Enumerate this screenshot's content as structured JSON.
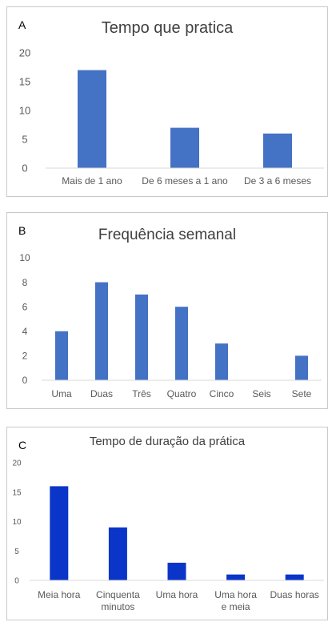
{
  "chart_data": [
    {
      "id": "A",
      "type": "bar",
      "panel_label": "A",
      "title": "Tempo que pratica",
      "categories": [
        "Mais de 1 ano",
        "De 6 meses a 1 ano",
        "De 3 a 6 meses"
      ],
      "values": [
        17,
        7,
        6
      ],
      "ylim": [
        0,
        20
      ],
      "yticks": [
        0,
        5,
        10,
        15,
        20
      ],
      "grid": false,
      "color": "#4472C4"
    },
    {
      "id": "B",
      "type": "bar",
      "panel_label": "B",
      "title": "Frequência semanal",
      "categories": [
        "Uma",
        "Duas",
        "Três",
        "Quatro",
        "Cinco",
        "Seis",
        "Sete"
      ],
      "values": [
        4,
        8,
        7,
        6,
        3,
        0,
        2
      ],
      "ylim": [
        0,
        10
      ],
      "yticks": [
        0,
        2,
        4,
        6,
        8,
        10
      ],
      "grid": false,
      "color": "#4472C4"
    },
    {
      "id": "C",
      "type": "bar",
      "panel_label": "C",
      "title": "Tempo de duração da prática",
      "categories": [
        [
          "Meia hora"
        ],
        [
          "Cinquenta",
          "minutos"
        ],
        [
          "Uma hora"
        ],
        [
          "Uma hora",
          "e meia"
        ],
        [
          "Duas horas"
        ]
      ],
      "values": [
        16,
        9,
        3,
        1,
        1
      ],
      "ylim": [
        0,
        20
      ],
      "yticks": [
        0,
        5,
        10,
        15,
        20
      ],
      "grid": false,
      "color": "#0A35C8"
    }
  ]
}
